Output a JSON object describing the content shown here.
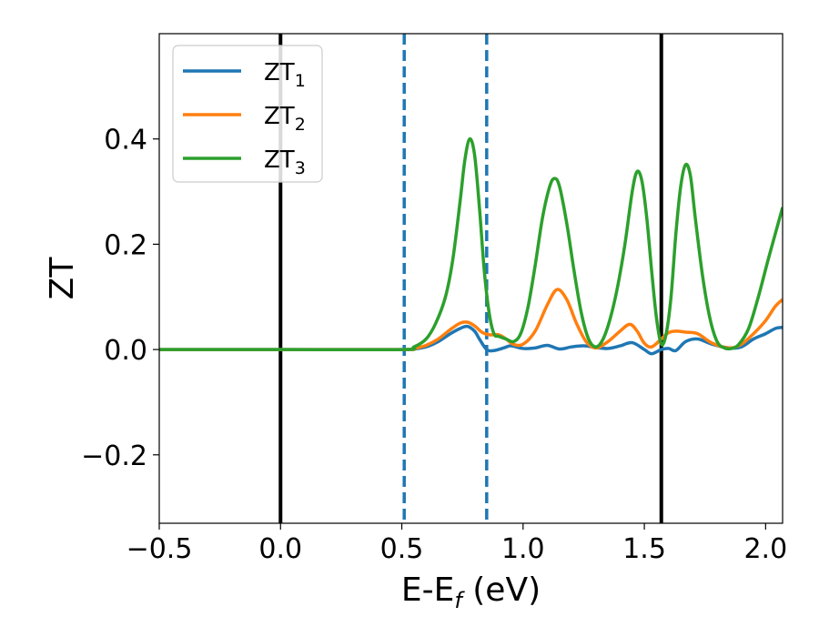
{
  "chart_data": {
    "type": "line",
    "xlabel": "E-E",
    "xlabel_sub": "f",
    "xlabel_unit": " (eV)",
    "ylabel": "ZT",
    "xlim": [
      -0.5,
      2.07
    ],
    "ylim": [
      -0.33,
      0.6
    ],
    "xticks": [
      {
        "value": -0.5,
        "label": "−0.5"
      },
      {
        "value": 0.0,
        "label": "0.0"
      },
      {
        "value": 0.5,
        "label": "0.5"
      },
      {
        "value": 1.0,
        "label": "1.0"
      },
      {
        "value": 1.5,
        "label": "1.5"
      },
      {
        "value": 2.0,
        "label": "2.0"
      }
    ],
    "yticks": [
      {
        "value": -0.2,
        "label": "−0.2"
      },
      {
        "value": 0.0,
        "label": "0.0"
      },
      {
        "value": 0.2,
        "label": "0.2"
      },
      {
        "value": 0.4,
        "label": "0.4"
      }
    ],
    "grid": false,
    "legend_position": "top-left",
    "vlines": [
      {
        "x": 0.0,
        "style": "solid",
        "color": "#000000"
      },
      {
        "x": 1.57,
        "style": "solid",
        "color": "#000000"
      },
      {
        "x": 0.51,
        "style": "dashed",
        "color": "#1f77b4"
      },
      {
        "x": 0.85,
        "style": "dashed",
        "color": "#1f77b4"
      }
    ],
    "series": [
      {
        "name": "ZT",
        "name_sub": "1",
        "color": "#1f77b4",
        "x": [
          -0.5,
          0.0,
          0.5,
          0.55,
          0.6,
          0.65,
          0.7,
          0.74,
          0.77,
          0.8,
          0.82,
          0.85,
          0.88,
          0.92,
          0.95,
          1.0,
          1.05,
          1.1,
          1.15,
          1.2,
          1.25,
          1.3,
          1.35,
          1.4,
          1.45,
          1.5,
          1.53,
          1.57,
          1.6,
          1.63,
          1.67,
          1.72,
          1.78,
          1.85,
          1.9,
          1.95,
          2.0,
          2.04,
          2.07
        ],
        "y": [
          0.0,
          0.0,
          0.0,
          0.001,
          0.005,
          0.015,
          0.03,
          0.04,
          0.044,
          0.035,
          0.02,
          0.0,
          -0.002,
          0.003,
          0.007,
          0.002,
          0.003,
          0.008,
          0.001,
          0.005,
          0.007,
          0.004,
          0.002,
          0.007,
          0.013,
          0.0,
          -0.008,
          0.0,
          0.002,
          -0.002,
          0.015,
          0.02,
          0.01,
          0.003,
          0.005,
          0.02,
          0.03,
          0.04,
          0.042
        ]
      },
      {
        "name": "ZT",
        "name_sub": "2",
        "color": "#ff7f0e",
        "x": [
          -0.5,
          0.0,
          0.5,
          0.55,
          0.6,
          0.65,
          0.7,
          0.74,
          0.77,
          0.8,
          0.83,
          0.86,
          0.9,
          0.93,
          0.96,
          1.0,
          1.05,
          1.1,
          1.14,
          1.18,
          1.22,
          1.26,
          1.3,
          1.35,
          1.4,
          1.44,
          1.47,
          1.5,
          1.53,
          1.57,
          1.6,
          1.63,
          1.67,
          1.72,
          1.78,
          1.85,
          1.9,
          1.95,
          2.0,
          2.04,
          2.07
        ],
        "y": [
          0.0,
          0.0,
          0.0,
          0.002,
          0.008,
          0.02,
          0.038,
          0.05,
          0.052,
          0.045,
          0.033,
          0.028,
          0.028,
          0.02,
          0.01,
          0.01,
          0.035,
          0.085,
          0.114,
          0.095,
          0.05,
          0.015,
          0.003,
          0.015,
          0.035,
          0.048,
          0.035,
          0.012,
          0.005,
          0.02,
          0.032,
          0.035,
          0.033,
          0.03,
          0.012,
          0.003,
          0.01,
          0.03,
          0.055,
          0.082,
          0.095
        ]
      },
      {
        "name": "ZT",
        "name_sub": "3",
        "color": "#2ca02c",
        "x": [
          -0.5,
          0.0,
          0.5,
          0.55,
          0.6,
          0.64,
          0.68,
          0.71,
          0.74,
          0.76,
          0.78,
          0.8,
          0.82,
          0.84,
          0.86,
          0.88,
          0.9,
          0.93,
          0.96,
          0.99,
          1.02,
          1.05,
          1.08,
          1.11,
          1.13,
          1.15,
          1.18,
          1.21,
          1.24,
          1.27,
          1.3,
          1.33,
          1.36,
          1.39,
          1.42,
          1.45,
          1.47,
          1.49,
          1.51,
          1.53,
          1.55,
          1.57,
          1.59,
          1.61,
          1.63,
          1.65,
          1.67,
          1.69,
          1.71,
          1.74,
          1.77,
          1.8,
          1.83,
          1.86,
          1.89,
          1.93,
          1.97,
          2.01,
          2.04,
          2.07
        ],
        "y": [
          0.0,
          0.0,
          0.0,
          0.005,
          0.02,
          0.05,
          0.1,
          0.17,
          0.28,
          0.36,
          0.4,
          0.37,
          0.27,
          0.15,
          0.07,
          0.03,
          0.025,
          0.02,
          0.015,
          0.03,
          0.08,
          0.16,
          0.25,
          0.31,
          0.325,
          0.31,
          0.24,
          0.15,
          0.07,
          0.02,
          0.005,
          0.02,
          0.06,
          0.12,
          0.2,
          0.3,
          0.338,
          0.32,
          0.25,
          0.15,
          0.06,
          0.01,
          0.03,
          0.1,
          0.22,
          0.31,
          0.351,
          0.33,
          0.25,
          0.14,
          0.06,
          0.015,
          0.003,
          0.002,
          0.01,
          0.04,
          0.1,
          0.17,
          0.22,
          0.27
        ]
      }
    ]
  }
}
